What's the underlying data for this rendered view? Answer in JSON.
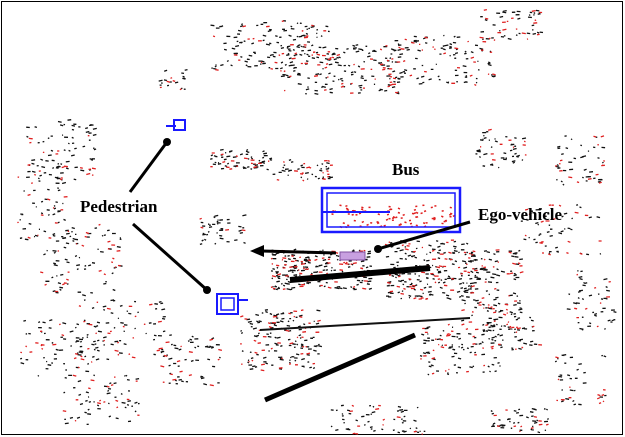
{
  "labels": {
    "bus": "Bus",
    "pedestrian": "Pedestrian",
    "ego_vehicle": "Ego-vehicle"
  }
}
